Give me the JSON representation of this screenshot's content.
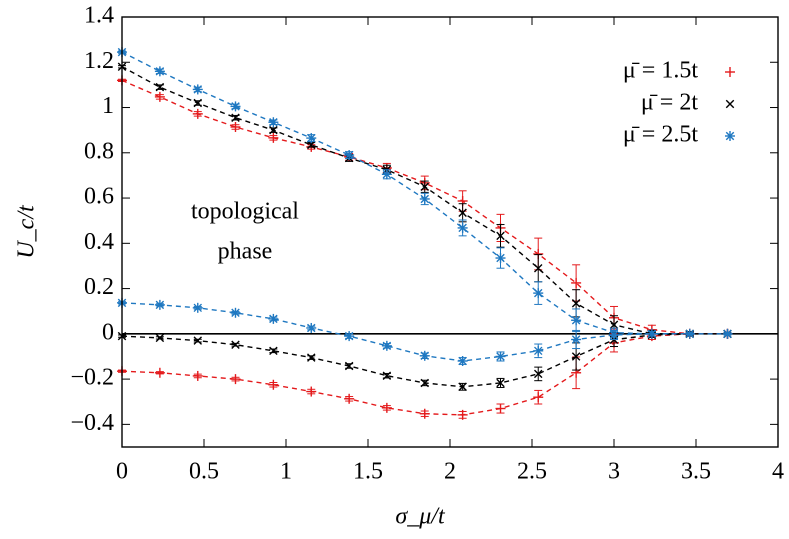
{
  "chart_data": {
    "type": "scatter",
    "x_label": "σ_μ/t",
    "y_label": "U_c/t",
    "annotation": [
      "topological",
      "phase"
    ],
    "x": [
      0,
      0.231,
      0.462,
      0.692,
      0.923,
      1.154,
      1.385,
      1.615,
      1.846,
      2.077,
      2.308,
      2.538,
      2.769,
      3.0,
      3.231,
      3.462,
      3.692
    ],
    "xlim": [
      0,
      4
    ],
    "xticks": [
      0,
      0.5,
      1,
      1.5,
      2,
      2.5,
      3,
      3.5,
      4
    ],
    "ylim": [
      -0.5,
      1.4
    ],
    "yticks": [
      {
        "value": -0.4,
        "label": "−0.4"
      },
      {
        "value": -0.2,
        "label": "−0.2"
      },
      0,
      0.2,
      0.4,
      0.6,
      0.8,
      1,
      1.2,
      1.4
    ],
    "zero_line": true,
    "legend": "top-right",
    "line_style": "dashed",
    "series": [
      {
        "name": "μ̄ = 1.5t",
        "color": "#e41a1c",
        "marker": "plus",
        "values": [
          1.12,
          1.047,
          0.972,
          0.914,
          0.866,
          0.826,
          0.782,
          0.733,
          0.667,
          0.587,
          0.468,
          0.353,
          0.225,
          0.071,
          0.018,
          0,
          0
        ],
        "errors": [
          0.005,
          0.01,
          0.01,
          0.01,
          0.01,
          0.01,
          0.015,
          0.02,
          0.03,
          0.045,
          0.06,
          0.07,
          0.08,
          0.05,
          0.02,
          0.01,
          0.005
        ]
      },
      {
        "name": "μ̄ = 2t",
        "color": "#000000",
        "marker": "cross",
        "values": [
          1.18,
          1.09,
          1.02,
          0.955,
          0.9,
          0.835,
          0.777,
          0.725,
          0.65,
          0.535,
          0.433,
          0.29,
          0.135,
          0.04,
          0,
          0,
          0
        ],
        "errors": [
          0.005,
          0.01,
          0.01,
          0.01,
          0.01,
          0.01,
          0.015,
          0.02,
          0.025,
          0.04,
          0.05,
          0.06,
          0.06,
          0.04,
          0.015,
          0.01,
          0.005
        ]
      },
      {
        "name": "μ̄ = 2.5t",
        "color": "#1f78c1",
        "marker": "star",
        "values": [
          1.245,
          1.16,
          1.08,
          1.005,
          0.935,
          0.865,
          0.79,
          0.705,
          0.596,
          0.468,
          0.335,
          0.18,
          0.06,
          0.005,
          0,
          0,
          0
        ],
        "errors": [
          0.005,
          0.01,
          0.01,
          0.01,
          0.01,
          0.015,
          0.015,
          0.02,
          0.025,
          0.035,
          0.045,
          0.05,
          0.05,
          0.02,
          0.01,
          0.005,
          0.005
        ]
      },
      {
        "color": "#e41a1c",
        "marker": "plus",
        "values": [
          -0.165,
          -0.172,
          -0.186,
          -0.2,
          -0.225,
          -0.255,
          -0.287,
          -0.327,
          -0.353,
          -0.358,
          -0.33,
          -0.28,
          -0.172,
          -0.04,
          -0.01,
          0,
          0
        ],
        "errors": [
          0.005,
          0.005,
          0.008,
          0.008,
          0.01,
          0.01,
          0.01,
          0.01,
          0.012,
          0.015,
          0.02,
          0.03,
          0.07,
          0.04,
          0.015,
          0.005,
          0.005
        ]
      },
      {
        "color": "#000000",
        "marker": "cross",
        "values": [
          -0.01,
          -0.018,
          -0.03,
          -0.048,
          -0.075,
          -0.105,
          -0.142,
          -0.185,
          -0.217,
          -0.234,
          -0.217,
          -0.177,
          -0.1,
          -0.026,
          -0.005,
          0,
          0
        ],
        "errors": [
          0.005,
          0.005,
          0.006,
          0.006,
          0.008,
          0.008,
          0.01,
          0.01,
          0.012,
          0.015,
          0.02,
          0.03,
          0.06,
          0.03,
          0.01,
          0.005,
          0.005
        ]
      },
      {
        "color": "#1f78c1",
        "marker": "star",
        "values": [
          0.137,
          0.128,
          0.115,
          0.093,
          0.066,
          0.026,
          -0.01,
          -0.053,
          -0.097,
          -0.12,
          -0.1,
          -0.075,
          -0.025,
          -0.005,
          0,
          0,
          0
        ],
        "errors": [
          0.005,
          0.005,
          0.006,
          0.006,
          0.008,
          0.008,
          0.01,
          0.01,
          0.012,
          0.015,
          0.02,
          0.03,
          0.04,
          0.02,
          0.01,
          0.005,
          0.005
        ]
      }
    ]
  }
}
